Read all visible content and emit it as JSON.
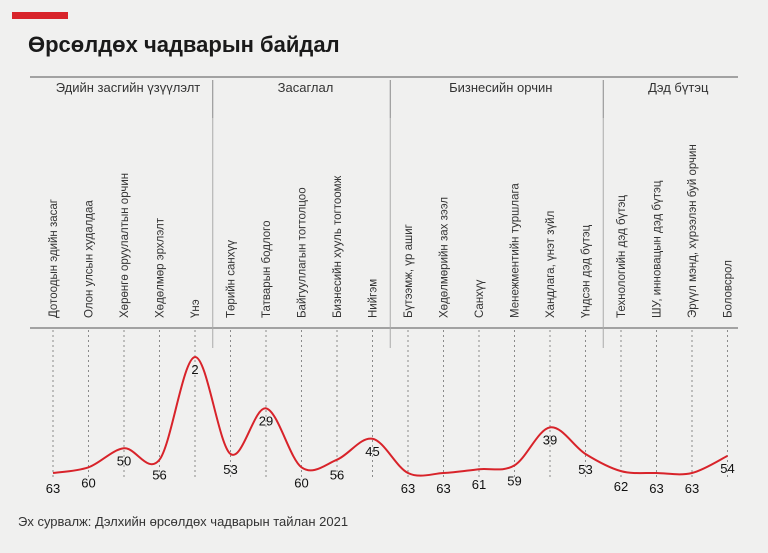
{
  "title": "Өрсөлдөх чадварын байдал",
  "source": "Эх сурвалж: Дэлхийн өрсөлдөх чадварын тайлан 2021",
  "colors": {
    "accent": "#d8232a",
    "line": "#d8232a",
    "grid": "#8a8a8a"
  },
  "chart_data": {
    "type": "line",
    "title": "Өрсөлдөх чадварын байдал",
    "xlabel": "",
    "ylabel": "",
    "y_reversed": true,
    "groups": [
      {
        "label": "Эдийн засгийн үзүүлэлт",
        "count": 5
      },
      {
        "label": "Засаглал",
        "count": 5
      },
      {
        "label": "Бизнесийн орчин",
        "count": 6
      },
      {
        "label": "Дэд бүтэц",
        "count": 4
      }
    ],
    "categories": [
      "Дотоодын эдийн засаг",
      "Олон улсын худалдаа",
      "Хөрөнгө оруулалтын орчин",
      "Хөдөлмөр эрхлэлт",
      "Үнэ",
      "Төрийн санхүү",
      "Татварын бодлого",
      "Байгууллагын тогтолцоо",
      "Бизнесийн хууль тогтоомж",
      "Нийгэм",
      "Бүтээмж, үр ашиг",
      "Хөдөлмөрийн зах зээл",
      "Санхүү",
      "Менежментийн туршлага",
      "Хандлага, үнэт зүйл",
      "Үндсэн дэд бүтэц",
      "Технологийн дэд бүтэц",
      "ШУ, инновацын дэд бүтэц",
      "Эрүүл мэнд, хүрээлэн буй орчин",
      "Боловсрол"
    ],
    "values": [
      63,
      60,
      50,
      56,
      2,
      53,
      29,
      60,
      56,
      45,
      63,
      63,
      61,
      59,
      39,
      53,
      62,
      63,
      63,
      54
    ]
  }
}
